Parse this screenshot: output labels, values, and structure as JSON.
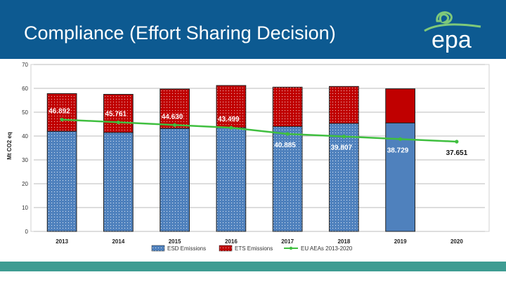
{
  "header": {
    "title": "Compliance (Effort Sharing Decision)",
    "logo_text": "epa",
    "background_color": "#0d5a91"
  },
  "footer": {
    "color": "#3e9c92"
  },
  "chart_data": {
    "type": "bar",
    "stacked": true,
    "title": "",
    "xlabel": "",
    "ylabel": "Mt CO2 eq",
    "ylim": [
      0,
      70
    ],
    "yticks": [
      0,
      10,
      20,
      30,
      40,
      50,
      60,
      70
    ],
    "grid": true,
    "legend_position": "bottom",
    "categories": [
      "2013",
      "2014",
      "2015",
      "2016",
      "2017",
      "2018",
      "2019",
      "2020"
    ],
    "series": [
      {
        "name": "ESD Emissions",
        "kind": "bar",
        "color": "#4f81bd",
        "values": [
          42.0,
          41.5,
          43.2,
          43.5,
          44.0,
          45.3,
          45.5,
          null
        ]
      },
      {
        "name": "ETS Emissions",
        "kind": "bar",
        "color": "#c00000",
        "values": [
          15.8,
          16.0,
          16.5,
          17.7,
          16.5,
          15.5,
          14.3,
          null
        ]
      },
      {
        "name": "EU AEAs 2013-2020",
        "kind": "line",
        "color": "#3fbf3f",
        "values": [
          46.892,
          45.761,
          44.63,
          43.499,
          40.885,
          39.807,
          38.729,
          37.651
        ]
      }
    ],
    "data_labels": [
      "46.892",
      "45.761",
      "44.630",
      "43.499",
      "40.885",
      "39.807",
      "38.729",
      "37.651"
    ]
  }
}
